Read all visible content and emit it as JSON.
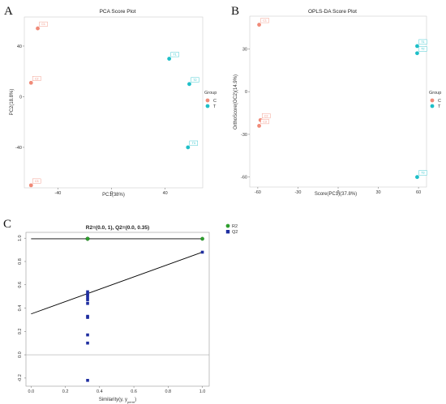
{
  "panels": {
    "a": {
      "letter": "A"
    },
    "b": {
      "letter": "B"
    },
    "c": {
      "letter": "C"
    }
  },
  "chart_data": [
    {
      "id": "pca",
      "type": "scatter",
      "title": "PCA Score Plot",
      "xlabel": "PC1(38%)",
      "ylabel": "PC2(18.8%)",
      "xlim": [
        -65,
        68
      ],
      "ylim": [
        -72,
        63
      ],
      "xticks": [
        -40,
        0,
        40
      ],
      "yticks": [
        -40,
        0,
        40
      ],
      "grid": false,
      "legend": {
        "title": "Group",
        "placement": "right",
        "entries": [
          "C",
          "T"
        ]
      },
      "series": [
        {
          "name": "C",
          "color": "#f08a78",
          "points": [
            {
              "label": "C1",
              "x": -55,
              "y": 54
            },
            {
              "label": "C2",
              "x": -60,
              "y": 11
            },
            {
              "label": "C3",
              "x": -60,
              "y": -70
            }
          ]
        },
        {
          "name": "T",
          "color": "#1ebfc8",
          "points": [
            {
              "label": "T1",
              "x": 43,
              "y": 30
            },
            {
              "label": "T2",
              "x": 58,
              "y": 10
            },
            {
              "label": "T3",
              "x": 57,
              "y": -40
            }
          ]
        }
      ]
    },
    {
      "id": "oplsda",
      "type": "scatter",
      "title": "OPLS-DA Score Plot",
      "xlabel": "Score(PC1)(37.8%)",
      "ylabel": "OrthoScore(OC2)(14.9%)",
      "xlim": [
        -66,
        66
      ],
      "ylim": [
        -67,
        53
      ],
      "xticks": [
        -60,
        -30,
        0,
        30,
        60
      ],
      "yticks": [
        -60,
        -30,
        0,
        30
      ],
      "grid": false,
      "legend": {
        "title": "Group",
        "placement": "right",
        "entries": [
          "C",
          "T"
        ]
      },
      "series": [
        {
          "name": "C",
          "color": "#f08a78",
          "points": [
            {
              "label": "C1",
              "x": -59,
              "y": 47
            },
            {
              "label": "C2",
              "x": -58,
              "y": -20
            },
            {
              "label": "C3",
              "x": -59,
              "y": -24
            }
          ]
        },
        {
          "name": "T",
          "color": "#1ebfc8",
          "points": [
            {
              "label": "T1",
              "x": 59,
              "y": 32
            },
            {
              "label": "T2",
              "x": 59,
              "y": 27
            },
            {
              "label": "T3",
              "x": 59,
              "y": -60
            }
          ]
        }
      ]
    },
    {
      "id": "permutation",
      "type": "scatter",
      "title": "R2=(0.0, 1), Q2=(0.0, 0.35)",
      "xlabel": "Similarity(y, y_perm)",
      "xlabel_main": "Similarity(y, y",
      "xlabel_sub": "perm",
      "xlabel_tail": ")",
      "ylabel": "",
      "xlim": [
        -0.03,
        1.04
      ],
      "ylim": [
        -0.27,
        1.05
      ],
      "xticks": [
        "0.0",
        "0.2",
        "0.4",
        "0.6",
        "0.8",
        "1.0"
      ],
      "yticks": [
        "-0.2",
        "0.0",
        "0.2",
        "0.4",
        "0.6",
        "0.8",
        "1.0"
      ],
      "grid": false,
      "legend": {
        "placement": "top-right",
        "entries": [
          "R2",
          "Q2"
        ]
      },
      "series": [
        {
          "name": "R2",
          "color": "#2e9e2e",
          "marker": "circle",
          "x": [
            0.33,
            0.33,
            0.33,
            0.33,
            1.0
          ],
          "y": [
            0.995,
            0.995,
            0.995,
            0.995,
            0.995
          ]
        },
        {
          "name": "Q2",
          "color": "#1f2ea0",
          "marker": "square",
          "x": [
            0.33,
            0.33,
            0.33,
            0.33,
            0.33,
            0.33,
            0.33,
            0.33,
            0.33,
            0.33,
            0.33,
            1.0
          ],
          "y": [
            0.54,
            0.51,
            0.49,
            0.47,
            0.44,
            0.33,
            0.32,
            0.17,
            0.1,
            -0.22,
            0.52,
            0.88
          ]
        }
      ],
      "reference_lines": [
        {
          "series": "R2",
          "intercept": 1.0,
          "x0": 0.0,
          "x1": 1.0,
          "y0": 0.995,
          "y1": 0.995
        },
        {
          "series": "Q2",
          "intercept": 0.35,
          "x0": 0.0,
          "x1": 1.0,
          "y0": 0.35,
          "y1": 0.88
        }
      ],
      "zero_line": 0.0
    }
  ]
}
